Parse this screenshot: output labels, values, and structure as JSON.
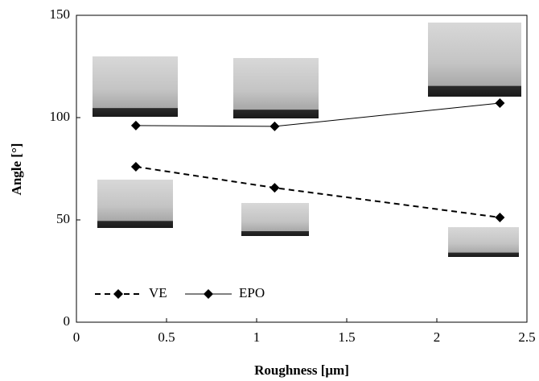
{
  "chart_data": {
    "type": "line",
    "x_label": "Roughness [μm]",
    "y_label": "Angle [°]",
    "x": [
      0.33,
      1.1,
      2.35
    ],
    "series": [
      {
        "name": "VE",
        "color": "#000000",
        "dash": true,
        "values": [
          76,
          65.7,
          51.2
        ]
      },
      {
        "name": "EPO",
        "color": "#000000",
        "dash": false,
        "values": [
          96.1,
          95.7,
          107.1
        ]
      }
    ],
    "xlim": [
      0,
      2.5
    ],
    "xticks": [
      0,
      0.5,
      1,
      1.5,
      2,
      2.5
    ],
    "ylim": [
      0,
      150
    ],
    "yticks": [
      0,
      50,
      100,
      150
    ],
    "grid": false,
    "legend": "lower left"
  }
}
